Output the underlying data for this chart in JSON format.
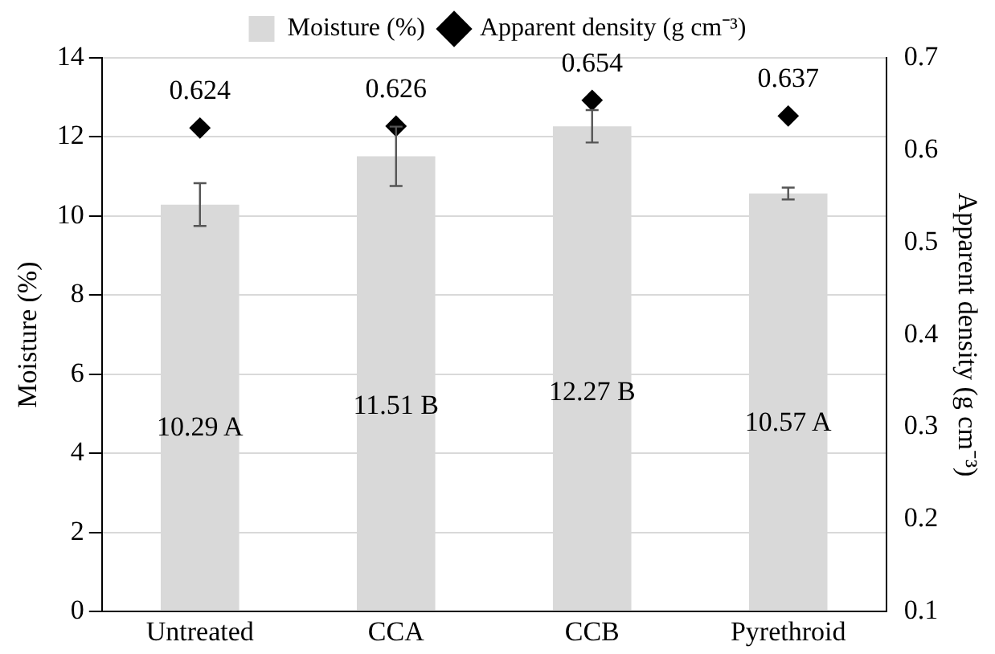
{
  "chart_data": {
    "type": "bar",
    "ylabel": "Moisture (%)",
    "y2label": "Apparent density (g cm⁻³)",
    "categories": [
      "Untreated",
      "CCA",
      "CCB",
      "Pyrethroid"
    ],
    "series": [
      {
        "name": "Moisture (%)",
        "color": "#d9d9d9",
        "values": [
          10.29,
          11.51,
          12.27,
          10.57
        ],
        "errors": [
          0.54,
          0.75,
          0.41,
          0.15
        ],
        "value_labels": [
          "10.29 A",
          "11.51 B",
          "12.27 B",
          "10.57 A"
        ]
      },
      {
        "name": "Apparent density (g cm⁻³)",
        "type": "scatter",
        "axis": "y2",
        "color": "#000000",
        "marker": "diamond",
        "values": [
          0.624,
          0.626,
          0.654,
          0.637
        ],
        "value_labels": [
          "0.624",
          "0.626",
          "0.654",
          "0.637"
        ]
      }
    ],
    "ylim": [
      0,
      14
    ],
    "yticks": [
      0,
      2,
      4,
      6,
      8,
      10,
      12,
      14
    ],
    "y2lim": [
      0.1,
      0.7
    ],
    "y2ticks": [
      0.1,
      0.2,
      0.3,
      0.4,
      0.5,
      0.6,
      0.7
    ],
    "grid": "y",
    "legend": "top"
  }
}
